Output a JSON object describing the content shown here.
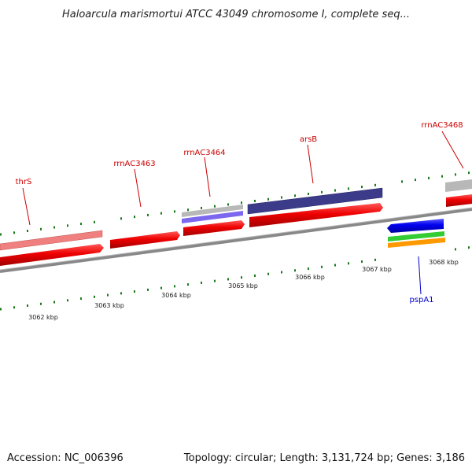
{
  "title": "Haloarcula marismortui ATCC 43049 chromosome I, complete seq...",
  "accession": "Accession: NC_006396",
  "summary": "Topology: circular; Length: 3,131,724 bp; Genes: 3,186",
  "scale_labels": [
    "3062 kbp",
    "3063 kbp",
    "3064 kbp",
    "3065 kbp",
    "3066 kbp",
    "3067 kbp",
    "3068 kbp"
  ],
  "gene_labels": [
    {
      "text": "thrS",
      "color": "#cc0000"
    },
    {
      "text": "rrnAC3463",
      "color": "#cc0000"
    },
    {
      "text": "rrnAC3464",
      "color": "#cc0000"
    },
    {
      "text": "arsB",
      "color": "#cc0000"
    },
    {
      "text": "rrnAC3468",
      "color": "#cc0000"
    },
    {
      "text": "pspA1",
      "color": "#0000cc"
    }
  ],
  "colors": {
    "cds_forward": "#ee0000",
    "cds_reverse": "#0000ee",
    "backbone": "#888888",
    "tick": "#1a7a1a",
    "thrS_bar": "#f08080",
    "arsB_bar": "#3b3b8a",
    "gray_bar": "#b8b8b8",
    "green_bar": "#33cc33",
    "orange_bar": "#ff9900",
    "violet_bar": "#7b68ee"
  }
}
